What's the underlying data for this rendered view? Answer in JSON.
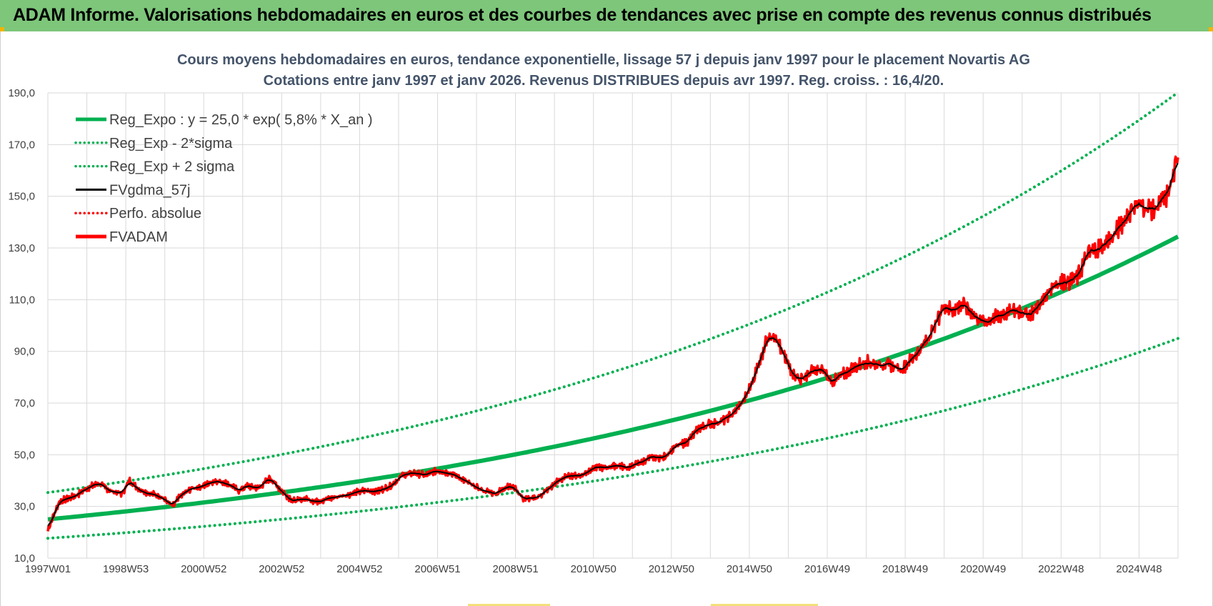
{
  "banner": {
    "title": "ADAM Informe. Valorisations hebdomadaires en euros et des courbes de tendances avec prise en compte des revenus connus distribués"
  },
  "chart_data": {
    "type": "line",
    "title_line1": "Cours moyens hebdomadaires en euros, tendance exponentielle, lissage 57 j depuis janv 1997  pour le placement Novartis AG",
    "title_line2": "Cotations entre janv 1997 et janv 2026. Revenus DISTRIBUES depuis avr 1997.  Reg. croiss. : 16,4/20.",
    "x_range_years": [
      1997.0,
      2026.0
    ],
    "ylim": [
      10,
      190
    ],
    "y_ticks": [
      "10,0",
      "30,0",
      "50,0",
      "70,0",
      "90,0",
      "110,0",
      "130,0",
      "150,0",
      "170,0",
      "190,0"
    ],
    "x_ticks": [
      {
        "label": "1997W01",
        "year": 1997.0
      },
      {
        "label": "1998W53",
        "year": 1999.0
      },
      {
        "label": "2000W52",
        "year": 2001.0
      },
      {
        "label": "2002W52",
        "year": 2003.0
      },
      {
        "label": "2004W52",
        "year": 2005.0
      },
      {
        "label": "2006W51",
        "year": 2007.0
      },
      {
        "label": "2008W51",
        "year": 2009.0
      },
      {
        "label": "2010W50",
        "year": 2011.0
      },
      {
        "label": "2012W50",
        "year": 2013.0
      },
      {
        "label": "2014W50",
        "year": 2015.0
      },
      {
        "label": "2016W49",
        "year": 2017.0
      },
      {
        "label": "2018W49",
        "year": 2019.0
      },
      {
        "label": "2020W49",
        "year": 2021.0
      },
      {
        "label": "2022W48",
        "year": 2023.0
      },
      {
        "label": "2024W48",
        "year": 2025.0
      }
    ],
    "grid": true,
    "legend_position": "top-left",
    "regression": {
      "a": 25.0,
      "rate": 0.058,
      "sigma_factor": 1.415
    },
    "series": [
      {
        "name": "Reg_Expo : y = 25,0 * exp( 5,8% *  X_an )",
        "color": "#00b050",
        "style": "solid-thick",
        "kind": "reg"
      },
      {
        "name": "Reg_Exp - 2*sigma",
        "color": "#00b050",
        "style": "dotted",
        "kind": "reg_low"
      },
      {
        "name": "Reg_Exp + 2 sigma",
        "color": "#00b050",
        "style": "dotted",
        "kind": "reg_high"
      },
      {
        "name": "FVgdma_57j",
        "color": "#000000",
        "style": "solid",
        "kind": "smooth"
      },
      {
        "name": "Perfo. absolue",
        "color": "#ff0000",
        "style": "dotted",
        "kind": "none"
      },
      {
        "name": "FVADAM",
        "color": "#ff0000",
        "style": "solid-thick",
        "kind": "price"
      }
    ],
    "price_points": [
      [
        1997.0,
        21
      ],
      [
        1997.3,
        32
      ],
      [
        1997.7,
        34
      ],
      [
        1998.0,
        37
      ],
      [
        1998.3,
        39
      ],
      [
        1998.6,
        36
      ],
      [
        1998.9,
        35
      ],
      [
        1999.1,
        40
      ],
      [
        1999.3,
        37
      ],
      [
        1999.6,
        35
      ],
      [
        1999.9,
        34
      ],
      [
        2000.2,
        30
      ],
      [
        2000.4,
        34
      ],
      [
        2000.7,
        37
      ],
      [
        2001.0,
        38
      ],
      [
        2001.3,
        40
      ],
      [
        2001.6,
        39
      ],
      [
        2001.9,
        36
      ],
      [
        2002.1,
        38
      ],
      [
        2002.4,
        37
      ],
      [
        2002.7,
        41
      ],
      [
        2003.0,
        36
      ],
      [
        2003.3,
        32
      ],
      [
        2003.6,
        33
      ],
      [
        2003.9,
        32
      ],
      [
        2004.2,
        33
      ],
      [
        2004.5,
        34
      ],
      [
        2004.8,
        35
      ],
      [
        2005.1,
        36
      ],
      [
        2005.5,
        36
      ],
      [
        2005.8,
        38
      ],
      [
        2006.1,
        42
      ],
      [
        2006.4,
        43
      ],
      [
        2006.7,
        42
      ],
      [
        2007.0,
        44
      ],
      [
        2007.3,
        43
      ],
      [
        2007.6,
        41
      ],
      [
        2007.9,
        38
      ],
      [
        2008.2,
        36
      ],
      [
        2008.5,
        35
      ],
      [
        2008.8,
        38
      ],
      [
        2009.0,
        37
      ],
      [
        2009.2,
        33
      ],
      [
        2009.5,
        33
      ],
      [
        2009.8,
        36
      ],
      [
        2010.1,
        40
      ],
      [
        2010.4,
        42
      ],
      [
        2010.7,
        42
      ],
      [
        2011.0,
        45
      ],
      [
        2011.3,
        45
      ],
      [
        2011.6,
        46
      ],
      [
        2011.9,
        45
      ],
      [
        2012.2,
        47
      ],
      [
        2012.5,
        49
      ],
      [
        2012.8,
        49
      ],
      [
        2013.1,
        53
      ],
      [
        2013.4,
        55
      ],
      [
        2013.7,
        60
      ],
      [
        2014.0,
        62
      ],
      [
        2014.3,
        63
      ],
      [
        2014.6,
        66
      ],
      [
        2014.9,
        72
      ],
      [
        2015.1,
        79
      ],
      [
        2015.3,
        88
      ],
      [
        2015.5,
        97
      ],
      [
        2015.7,
        94
      ],
      [
        2015.9,
        88
      ],
      [
        2016.1,
        82
      ],
      [
        2016.3,
        79
      ],
      [
        2016.6,
        82
      ],
      [
        2016.9,
        83
      ],
      [
        2017.1,
        78
      ],
      [
        2017.4,
        81
      ],
      [
        2017.7,
        84
      ],
      [
        2018.0,
        86
      ],
      [
        2018.3,
        85
      ],
      [
        2018.6,
        85
      ],
      [
        2018.9,
        83
      ],
      [
        2019.1,
        86
      ],
      [
        2019.4,
        91
      ],
      [
        2019.7,
        98
      ],
      [
        2020.0,
        108
      ],
      [
        2020.2,
        106
      ],
      [
        2020.5,
        108
      ],
      [
        2020.8,
        104
      ],
      [
        2021.0,
        101
      ],
      [
        2021.3,
        103
      ],
      [
        2021.6,
        105
      ],
      [
        2021.9,
        106
      ],
      [
        2022.2,
        104
      ],
      [
        2022.5,
        109
      ],
      [
        2022.8,
        116
      ],
      [
        2023.1,
        117
      ],
      [
        2023.4,
        118
      ],
      [
        2023.7,
        128
      ],
      [
        2024.0,
        130
      ],
      [
        2024.3,
        134
      ],
      [
        2024.6,
        140
      ],
      [
        2024.9,
        147
      ],
      [
        2025.1,
        146
      ],
      [
        2025.4,
        145
      ],
      [
        2025.7,
        150
      ],
      [
        2025.9,
        158
      ],
      [
        2026.0,
        165
      ]
    ]
  }
}
